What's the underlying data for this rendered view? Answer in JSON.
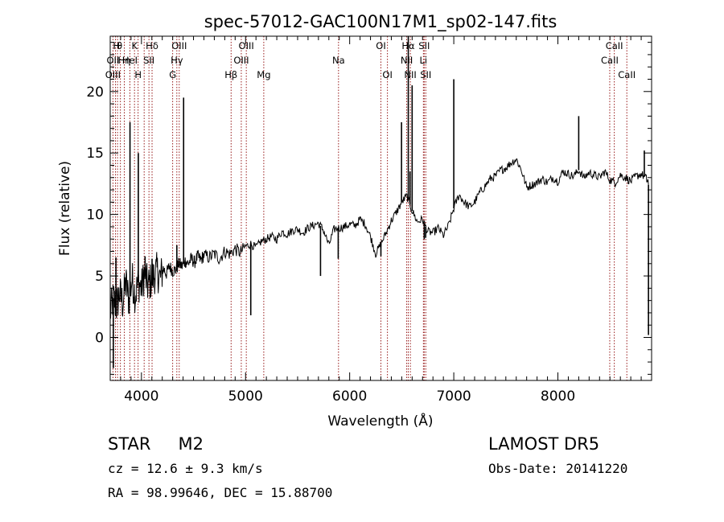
{
  "chart_data": {
    "type": "line",
    "title": "spec-57012-GAC100N17M1_sp02-147.fits",
    "xlabel": "Wavelength (Å)",
    "ylabel": "Flux (relative)",
    "xlim": [
      3700,
      8900
    ],
    "ylim": [
      -3.5,
      24.5
    ],
    "x_ticks": [
      4000,
      5000,
      6000,
      7000,
      8000
    ],
    "y_ticks": [
      0,
      5,
      10,
      15,
      20
    ],
    "grid": false,
    "series": [
      {
        "x": [
          3700,
          3730,
          3760,
          3790,
          3820,
          3850,
          3880,
          3910,
          3940,
          3970,
          4000,
          4030,
          4060,
          4090,
          4120,
          4150,
          4180,
          4210,
          4240,
          4270,
          4300,
          4330,
          4360,
          4390,
          4420,
          4450,
          4480,
          4510,
          4540,
          4570,
          4600,
          4650,
          4700,
          4750,
          4800,
          4850,
          4900,
          4950,
          5000,
          5050,
          5100,
          5150,
          5200,
          5250,
          5300,
          5350,
          5400,
          5450,
          5500,
          5550,
          5600,
          5650,
          5700,
          5750,
          5800,
          5850,
          5900,
          5950,
          6000,
          6050,
          6100,
          6150,
          6200,
          6250,
          6300,
          6350,
          6400,
          6450,
          6500,
          6550,
          6600,
          6650,
          6700,
          6750,
          6800,
          6850,
          6900,
          6950,
          7000,
          7050,
          7100,
          7150,
          7200,
          7250,
          7300,
          7350,
          7400,
          7450,
          7500,
          7550,
          7600,
          7650,
          7700,
          7750,
          7800,
          7850,
          7900,
          7950,
          8000,
          8050,
          8100,
          8150,
          8200,
          8250,
          8300,
          8350,
          8400,
          8450,
          8500,
          8550,
          8600,
          8650,
          8700,
          8750,
          8800,
          8850,
          8870
        ],
        "y": [
          2.0,
          3.2,
          2.5,
          3.6,
          2.8,
          4.5,
          3.0,
          4.8,
          3.4,
          4.5,
          4.0,
          5.2,
          4.2,
          4.6,
          5.0,
          5.4,
          4.8,
          5.6,
          5.2,
          5.8,
          5.4,
          5.5,
          6.0,
          5.8,
          6.2,
          6.0,
          6.4,
          6.1,
          6.6,
          6.3,
          6.7,
          6.5,
          6.8,
          6.4,
          7.0,
          6.8,
          7.2,
          6.9,
          7.4,
          7.6,
          7.3,
          7.8,
          8.0,
          8.2,
          8.0,
          8.6,
          8.4,
          8.7,
          8.8,
          8.5,
          8.9,
          9.1,
          9.3,
          8.7,
          7.5,
          8.8,
          8.9,
          9.0,
          9.2,
          9.1,
          9.6,
          9.2,
          8.2,
          6.8,
          7.6,
          8.5,
          9.5,
          10.2,
          11.0,
          11.5,
          10.3,
          9.4,
          9.6,
          8.6,
          8.5,
          8.9,
          8.3,
          9.1,
          10.5,
          11.6,
          11.0,
          10.6,
          11.0,
          11.8,
          12.3,
          12.9,
          13.1,
          13.6,
          13.8,
          14.2,
          14.5,
          13.6,
          12.2,
          12.4,
          12.6,
          12.9,
          12.6,
          13.0,
          12.7,
          13.5,
          13.3,
          13.1,
          13.6,
          13.0,
          13.4,
          13.2,
          13.0,
          13.5,
          12.8,
          12.6,
          13.2,
          13.0,
          12.7,
          13.1,
          13.3,
          12.9,
          12.4
        ]
      }
    ],
    "spikes": [
      {
        "x": 3730,
        "y": -2.5
      },
      {
        "x": 3755,
        "y": 6.5
      },
      {
        "x": 3890,
        "y": 17.5
      },
      {
        "x": 3970,
        "y": 15.0
      },
      {
        "x": 4035,
        "y": 6.6
      },
      {
        "x": 4102,
        "y": 6.4
      },
      {
        "x": 4340,
        "y": 7.5
      },
      {
        "x": 4405,
        "y": 19.5
      },
      {
        "x": 5050,
        "y": 1.8
      },
      {
        "x": 5720,
        "y": 5.0
      },
      {
        "x": 5890,
        "y": 6.4
      },
      {
        "x": 6300,
        "y": 6.6
      },
      {
        "x": 6498,
        "y": 17.5
      },
      {
        "x": 6563,
        "y": 24.5
      },
      {
        "x": 6580,
        "y": 13.5
      },
      {
        "x": 6600,
        "y": 20.5
      },
      {
        "x": 6716,
        "y": 8.0
      },
      {
        "x": 6730,
        "y": 8.1
      },
      {
        "x": 7000,
        "y": 21.0
      },
      {
        "x": 8200,
        "y": 18.0
      },
      {
        "x": 8830,
        "y": 15.2
      },
      {
        "x": 8870,
        "y": 0.2
      }
    ],
    "reference_lines": [
      3726,
      3750,
      3770,
      3798,
      3835,
      3889,
      3933,
      3968,
      4026,
      4072,
      4102,
      4300,
      4340,
      4363,
      4861,
      4959,
      5007,
      5175,
      5893,
      6300,
      6363,
      6548,
      6563,
      6583,
      6716,
      6708,
      6731,
      8498,
      8542,
      8662
    ],
    "line_labels": [
      {
        "text": "H",
        "x": 3760,
        "row": 1
      },
      {
        "text": "θ",
        "x": 3790,
        "row": 1
      },
      {
        "text": "K",
        "x": 3934,
        "row": 1
      },
      {
        "text": "Hδ",
        "x": 4102,
        "row": 1
      },
      {
        "text": "OIII",
        "x": 4363,
        "row": 1
      },
      {
        "text": "OIII",
        "x": 5007,
        "row": 1
      },
      {
        "text": "OI",
        "x": 6300,
        "row": 1
      },
      {
        "text": "Hα",
        "x": 6563,
        "row": 1
      },
      {
        "text": "SII",
        "x": 6716,
        "row": 1
      },
      {
        "text": "CaII",
        "x": 8542,
        "row": 1
      },
      {
        "text": "OII",
        "x": 3726,
        "row": 2
      },
      {
        "text": "HeI",
        "x": 3889,
        "row": 2
      },
      {
        "text": "SII",
        "x": 4072,
        "row": 2
      },
      {
        "text": "Hγ",
        "x": 4340,
        "row": 2
      },
      {
        "text": "OIII",
        "x": 4959,
        "row": 2
      },
      {
        "text": "Na",
        "x": 5893,
        "row": 2
      },
      {
        "text": "NII",
        "x": 6548,
        "row": 2
      },
      {
        "text": "Li",
        "x": 6708,
        "row": 2
      },
      {
        "text": "CaII",
        "x": 8498,
        "row": 2
      },
      {
        "text": "Hη",
        "x": 3835,
        "row": 2
      },
      {
        "text": "OIII",
        "x": 3726,
        "row": 3
      },
      {
        "text": "H",
        "x": 3968,
        "row": 3
      },
      {
        "text": "G",
        "x": 4300,
        "row": 3
      },
      {
        "text": "Hβ",
        "x": 4861,
        "row": 3
      },
      {
        "text": "Mg",
        "x": 5175,
        "row": 3
      },
      {
        "text": "OI",
        "x": 6363,
        "row": 3
      },
      {
        "text": "NII",
        "x": 6583,
        "row": 3
      },
      {
        "text": "SII",
        "x": 6731,
        "row": 3
      },
      {
        "text": "CaII",
        "x": 8662,
        "row": 3
      }
    ]
  },
  "info": {
    "star_type": "STAR",
    "subclass": "M2",
    "survey": "LAMOST DR5",
    "cz": "cz = 12.6 ± 9.3 km/s",
    "obs_date": "Obs-Date: 20141220",
    "coords": "RA =  98.99646, DEC =  15.88700"
  },
  "colors": {
    "spectrum": "#000000",
    "reference_line": "#8b0000",
    "background": "#ffffff"
  }
}
